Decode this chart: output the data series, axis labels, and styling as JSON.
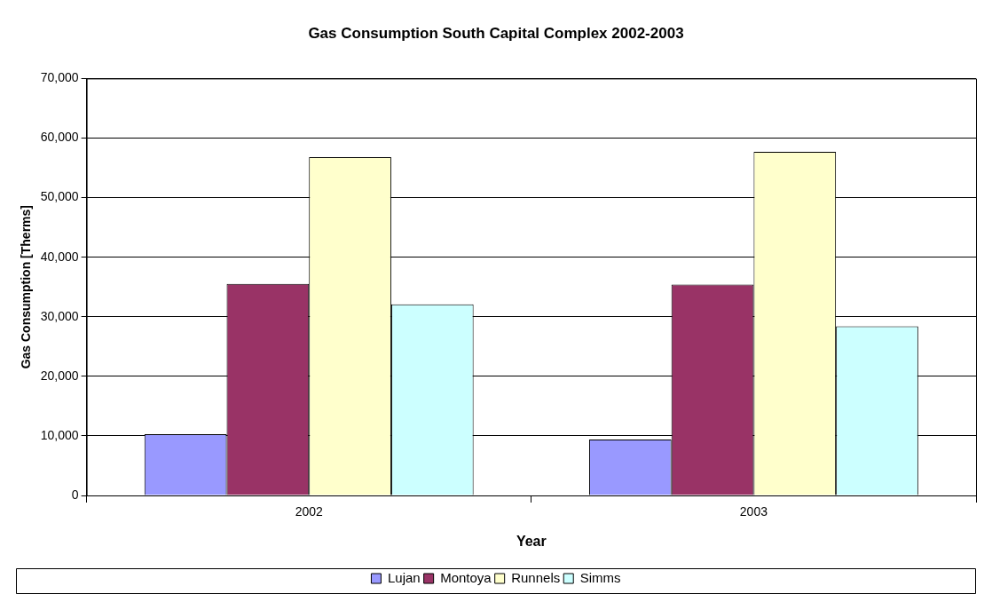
{
  "chart_data": {
    "type": "bar",
    "title": "Gas Consumption South Capital Complex 2002-2003",
    "xlabel": "Year",
    "ylabel": "Gas Consumption [Therms]",
    "categories": [
      "2002",
      "2003"
    ],
    "series": [
      {
        "name": "Lujan",
        "color": "#9999ff",
        "values": [
          10300,
          9400
        ]
      },
      {
        "name": "Montoya",
        "color": "#993366",
        "values": [
          35500,
          35400
        ]
      },
      {
        "name": "Runnels",
        "color": "#ffffcc",
        "values": [
          56800,
          57700
        ]
      },
      {
        "name": "Simms",
        "color": "#ccffff",
        "values": [
          32100,
          28400
        ]
      }
    ],
    "ylim": [
      0,
      70000
    ],
    "yticks": [
      {
        "value": 0,
        "label": "0"
      },
      {
        "value": 10000,
        "label": "10,000"
      },
      {
        "value": 20000,
        "label": "20,000"
      },
      {
        "value": 30000,
        "label": "30,000"
      },
      {
        "value": 40000,
        "label": "40,000"
      },
      {
        "value": 50000,
        "label": "50,000"
      },
      {
        "value": 60000,
        "label": "60,000"
      },
      {
        "value": 70000,
        "label": "70,000"
      }
    ],
    "grid": "y",
    "legend": "bottom"
  }
}
